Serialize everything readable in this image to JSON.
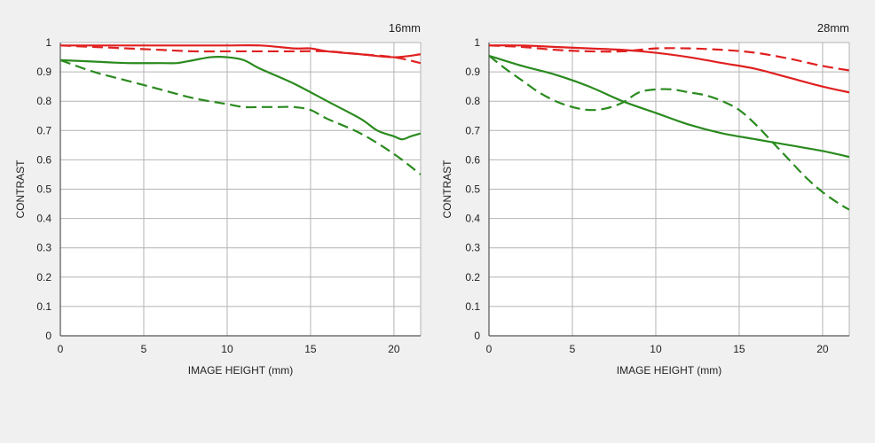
{
  "chart_data": [
    {
      "type": "line",
      "title": "16mm",
      "xlabel": "IMAGE HEIGHT (mm)",
      "ylabel": "CONTRAST",
      "xlim": [
        0,
        21.6
      ],
      "ylim": [
        0,
        1
      ],
      "xticks": [
        0,
        5,
        10,
        15,
        20
      ],
      "yticks": [
        0,
        0.1,
        0.2,
        0.3,
        0.4,
        0.5,
        0.6,
        0.7,
        0.8,
        0.9,
        1
      ],
      "grid": true,
      "series": [
        {
          "color": "#e02020",
          "dash": false,
          "x": [
            0,
            2,
            4,
            6,
            8,
            10,
            12,
            14,
            15,
            16,
            18,
            20,
            21.6
          ],
          "y": [
            0.99,
            0.99,
            0.99,
            0.99,
            0.99,
            0.99,
            0.99,
            0.98,
            0.98,
            0.97,
            0.96,
            0.95,
            0.96
          ]
        },
        {
          "color": "#e02020",
          "dash": true,
          "x": [
            0,
            2,
            4,
            6,
            8,
            10,
            12,
            14,
            16,
            18,
            20,
            21.6
          ],
          "y": [
            0.99,
            0.985,
            0.98,
            0.975,
            0.97,
            0.97,
            0.97,
            0.97,
            0.97,
            0.96,
            0.95,
            0.93
          ]
        },
        {
          "color": "#2a8a1e",
          "dash": false,
          "x": [
            0,
            2,
            4,
            6,
            7,
            8,
            9,
            10,
            11,
            12,
            14,
            16,
            18,
            19,
            20,
            20.5,
            21,
            21.6
          ],
          "y": [
            0.94,
            0.935,
            0.93,
            0.93,
            0.93,
            0.94,
            0.95,
            0.95,
            0.94,
            0.91,
            0.86,
            0.8,
            0.74,
            0.7,
            0.68,
            0.67,
            0.68,
            0.69
          ]
        },
        {
          "color": "#2a8a1e",
          "dash": true,
          "x": [
            0,
            2,
            4,
            6,
            8,
            10,
            11,
            12,
            13,
            14,
            15,
            16,
            18,
            20,
            21.6
          ],
          "y": [
            0.94,
            0.9,
            0.87,
            0.84,
            0.81,
            0.79,
            0.78,
            0.78,
            0.78,
            0.78,
            0.77,
            0.74,
            0.69,
            0.62,
            0.55
          ]
        }
      ]
    },
    {
      "type": "line",
      "title": "28mm",
      "xlabel": "IMAGE HEIGHT (mm)",
      "ylabel": "CONTRAST",
      "xlim": [
        0,
        21.6
      ],
      "ylim": [
        0,
        1
      ],
      "xticks": [
        0,
        5,
        10,
        15,
        20
      ],
      "yticks": [
        0,
        0.1,
        0.2,
        0.3,
        0.4,
        0.5,
        0.6,
        0.7,
        0.8,
        0.9,
        1
      ],
      "grid": true,
      "series": [
        {
          "color": "#e02020",
          "dash": false,
          "x": [
            0,
            2,
            4,
            6,
            8,
            10,
            12,
            14,
            16,
            18,
            20,
            21.6
          ],
          "y": [
            0.99,
            0.99,
            0.985,
            0.98,
            0.975,
            0.965,
            0.95,
            0.93,
            0.91,
            0.88,
            0.85,
            0.83
          ]
        },
        {
          "color": "#e02020",
          "dash": true,
          "x": [
            0,
            2,
            4,
            6,
            8,
            10,
            12,
            14,
            16,
            18,
            20,
            21.6
          ],
          "y": [
            0.99,
            0.985,
            0.975,
            0.97,
            0.97,
            0.98,
            0.98,
            0.975,
            0.965,
            0.945,
            0.92,
            0.905
          ]
        },
        {
          "color": "#2a8a1e",
          "dash": false,
          "x": [
            0,
            2,
            4,
            6,
            8,
            10,
            12,
            14,
            16,
            18,
            20,
            21.6
          ],
          "y": [
            0.955,
            0.92,
            0.89,
            0.85,
            0.8,
            0.76,
            0.72,
            0.69,
            0.67,
            0.65,
            0.63,
            0.61
          ]
        },
        {
          "color": "#2a8a1e",
          "dash": true,
          "x": [
            0,
            1,
            2,
            3,
            4,
            5,
            6,
            7,
            8,
            9,
            10,
            11,
            12,
            13,
            14,
            15,
            16,
            17,
            18,
            19,
            20,
            21,
            21.6
          ],
          "y": [
            0.955,
            0.91,
            0.87,
            0.83,
            0.8,
            0.78,
            0.77,
            0.775,
            0.795,
            0.83,
            0.84,
            0.84,
            0.83,
            0.82,
            0.8,
            0.77,
            0.72,
            0.66,
            0.6,
            0.54,
            0.49,
            0.45,
            0.43
          ]
        }
      ]
    }
  ]
}
